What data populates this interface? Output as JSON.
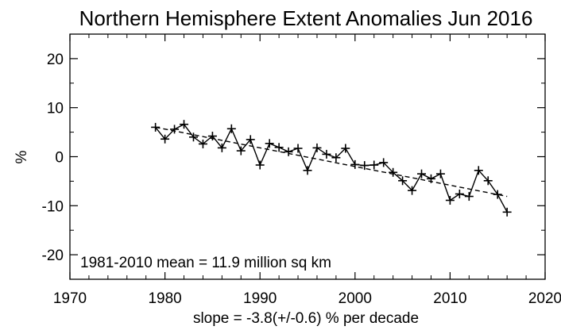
{
  "chart_data": {
    "type": "line",
    "title": "Northern Hemisphere Extent Anomalies Jun 2016",
    "xlabel": "",
    "ylabel": "%",
    "xlim": [
      1970,
      2020
    ],
    "ylim": [
      -25,
      25
    ],
    "x_ticks": [
      1970,
      1980,
      1990,
      2000,
      2010,
      2020
    ],
    "y_ticks": [
      -20,
      -10,
      0,
      10,
      20
    ],
    "grid": false,
    "annotations": {
      "mean_text": "1981-2010 mean =  11.9 million sq km",
      "slope_text": "slope =  -3.8(+/-0.6) % per decade"
    },
    "series": [
      {
        "name": "anomaly",
        "style": "solid-with-plus-markers",
        "x": [
          1979,
          1980,
          1981,
          1982,
          1983,
          1984,
          1985,
          1986,
          1987,
          1988,
          1989,
          1990,
          1991,
          1992,
          1993,
          1994,
          1995,
          1996,
          1997,
          1998,
          1999,
          2000,
          2001,
          2002,
          2003,
          2004,
          2005,
          2006,
          2007,
          2008,
          2009,
          2010,
          2011,
          2012,
          2013,
          2014,
          2015,
          2016
        ],
        "values": [
          6.0,
          3.6,
          5.6,
          6.6,
          4.0,
          2.6,
          4.2,
          1.8,
          5.7,
          1.2,
          3.5,
          -1.7,
          2.7,
          1.9,
          1.0,
          1.7,
          -2.8,
          1.8,
          0.5,
          -0.2,
          1.7,
          -1.6,
          -1.8,
          -1.7,
          -1.2,
          -3.2,
          -4.9,
          -6.9,
          -3.5,
          -4.5,
          -3.5,
          -8.9,
          -7.6,
          -8.1,
          -2.8,
          -4.9,
          -7.7,
          -11.3
        ]
      },
      {
        "name": "trend",
        "style": "dashed",
        "x": [
          1979,
          2016
        ],
        "values": [
          6.0,
          -8.1
        ]
      }
    ]
  }
}
